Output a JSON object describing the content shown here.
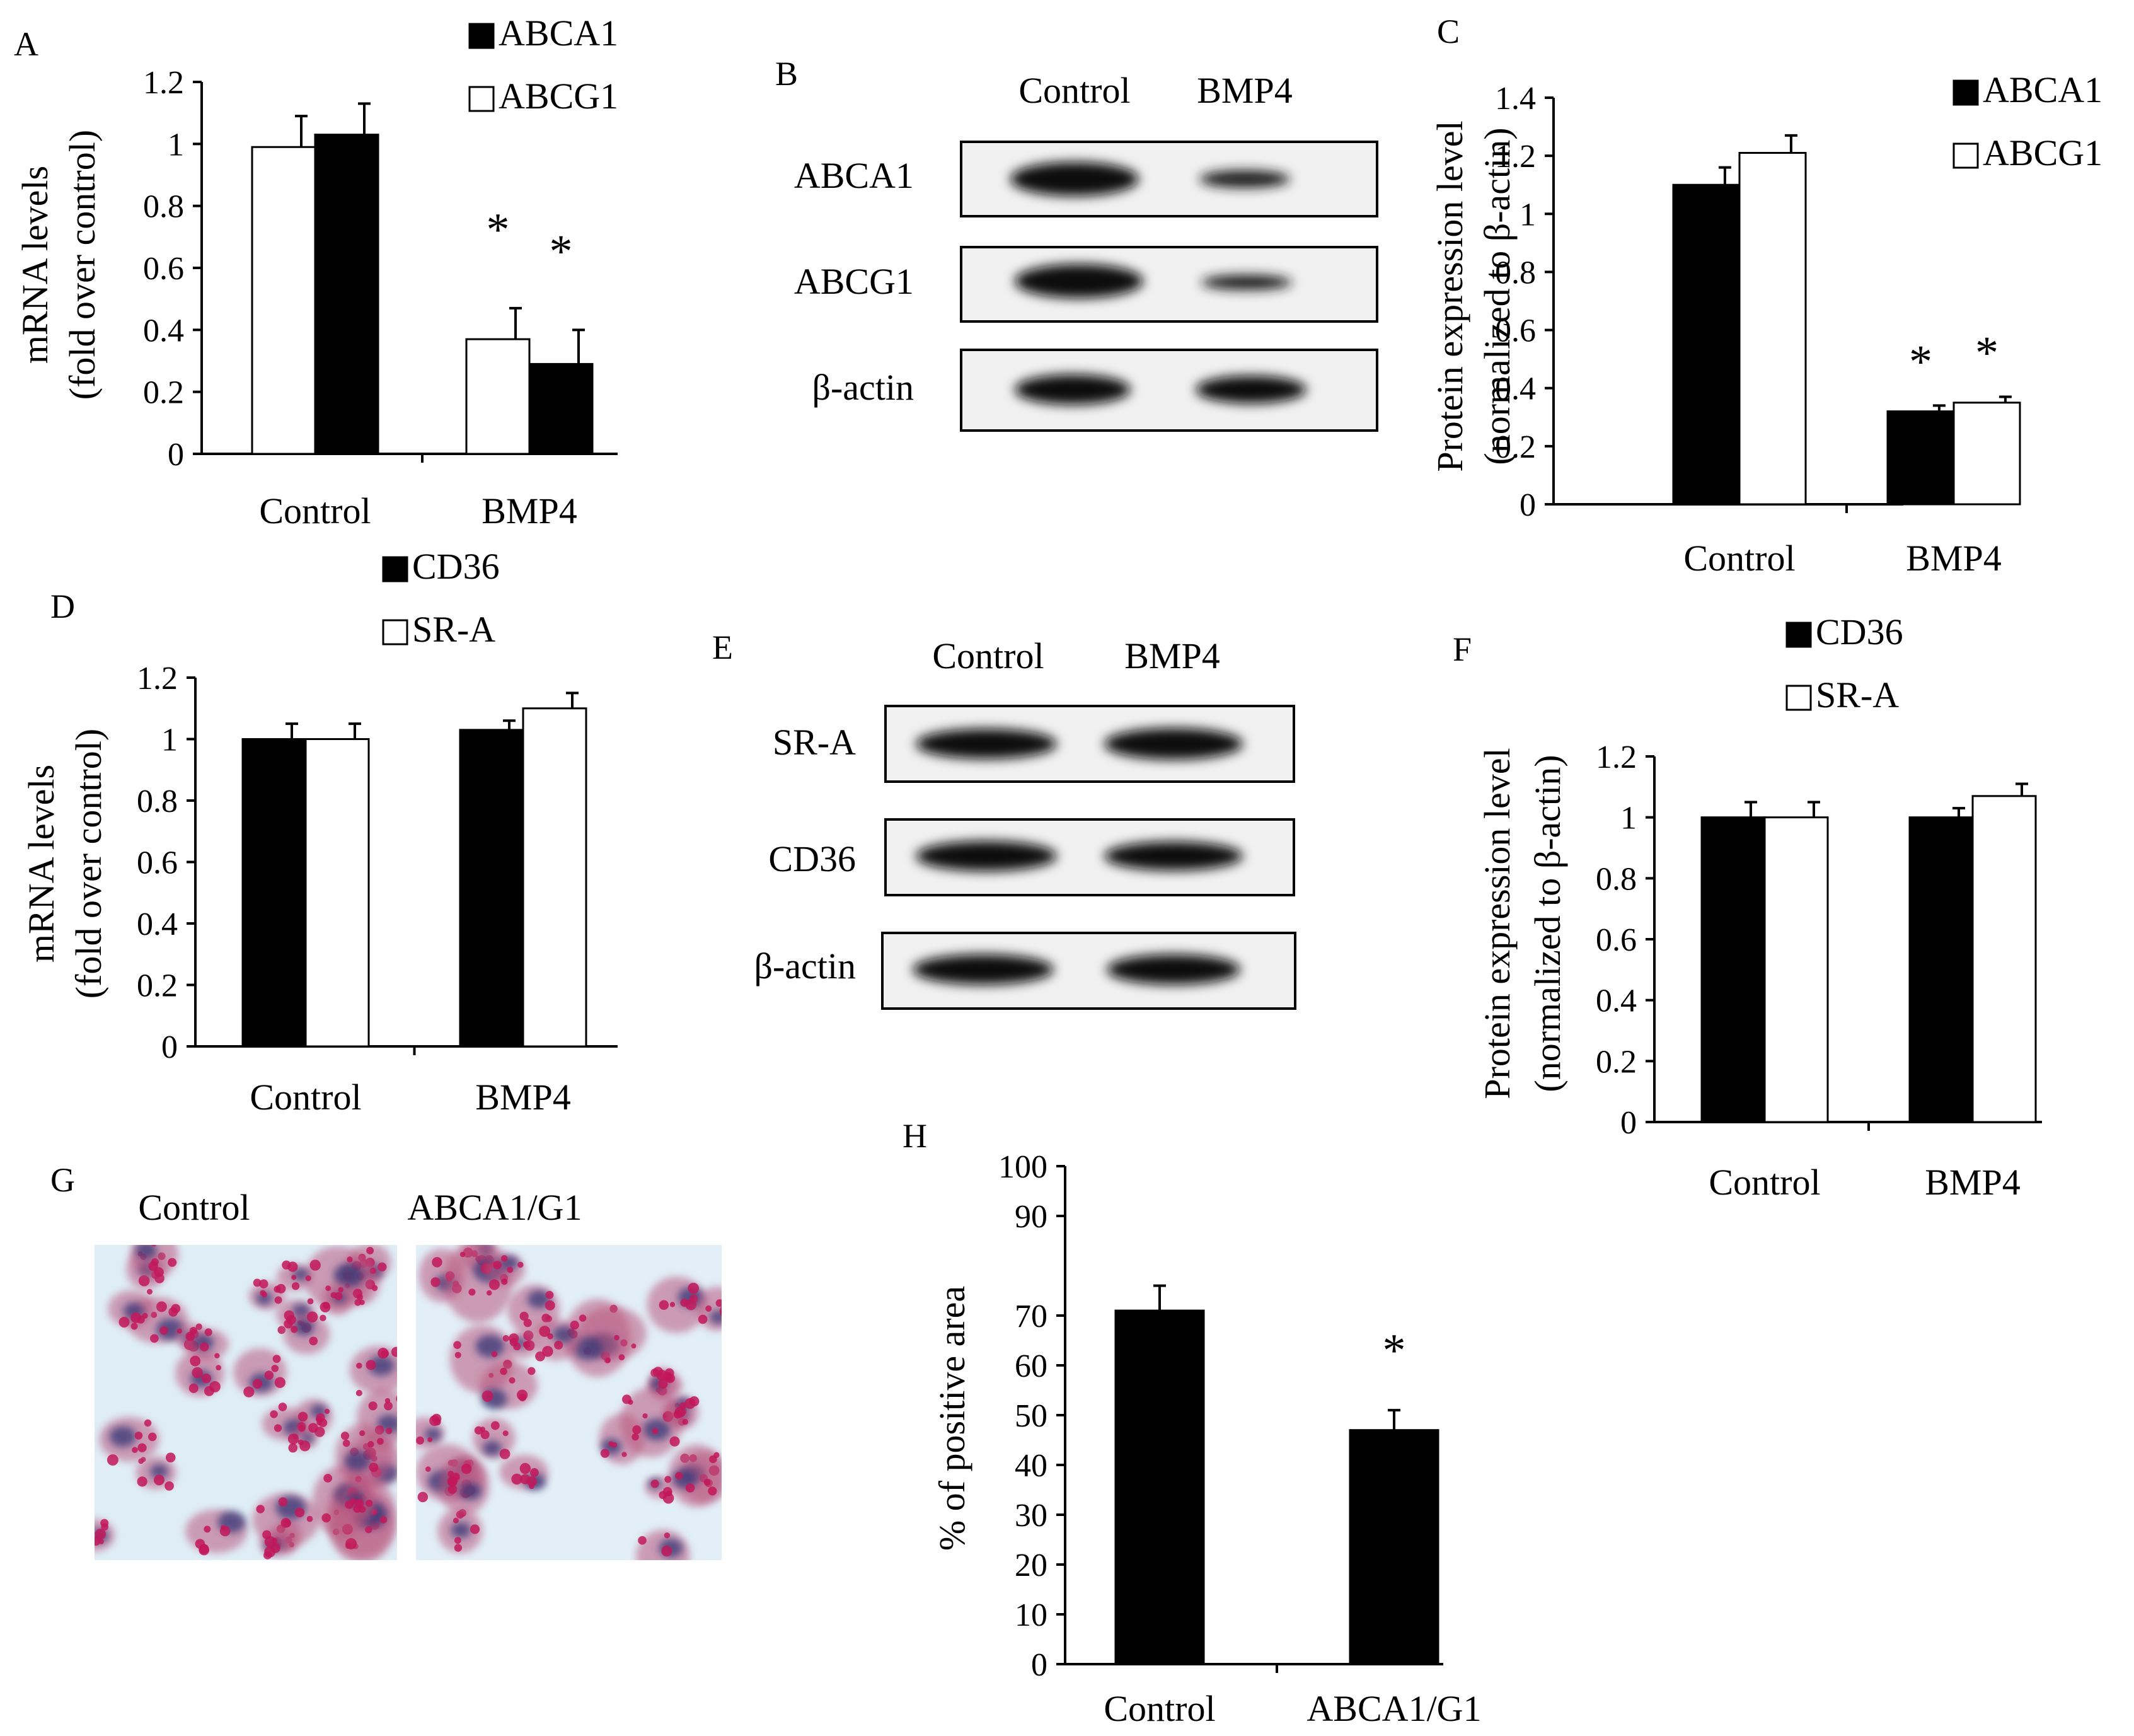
{
  "chart_data": [
    {
      "panel": "A",
      "type": "bar",
      "categories": [
        "Control",
        "BMP4"
      ],
      "ylabel": [
        "mRNA levels",
        "(fold over control)"
      ],
      "ylim": [
        0,
        1.2
      ],
      "yticks": [
        "0",
        "0.2",
        "0.4",
        "0.6",
        "0.8",
        "1",
        "1.2"
      ],
      "legend": [
        "ABCA1",
        "ABCG1"
      ],
      "series": [
        {
          "name": "ABCG1",
          "color": "#ffffff",
          "values": [
            0.99,
            0.37
          ],
          "errors": [
            0.1,
            0.1
          ]
        },
        {
          "name": "ABCA1",
          "color": "#000000",
          "values": [
            1.03,
            0.29
          ],
          "errors": [
            0.1,
            0.11
          ]
        }
      ],
      "annotations": [
        {
          "series": 0,
          "category": 1,
          "text": "*"
        },
        {
          "series": 1,
          "category": 1,
          "text": "*"
        }
      ]
    },
    {
      "panel": "C",
      "type": "bar",
      "categories": [
        "Control",
        "BMP4"
      ],
      "ylabel": [
        "Protein expression level",
        "(normalized to β-actin)"
      ],
      "ylim": [
        0,
        1.4
      ],
      "yticks": [
        "0",
        "0.2",
        "0.4",
        "0.6",
        "0.8",
        "1",
        "1.2",
        "1.4"
      ],
      "legend": [
        "ABCA1",
        "ABCG1"
      ],
      "series": [
        {
          "name": "ABCA1",
          "color": "#000000",
          "values": [
            1.1,
            0.32
          ],
          "errors": [
            0.06,
            0.02
          ]
        },
        {
          "name": "ABCG1",
          "color": "#ffffff",
          "values": [
            1.21,
            0.35
          ],
          "errors": [
            0.06,
            0.02
          ]
        }
      ],
      "annotations": [
        {
          "series": 0,
          "category": 1,
          "text": "*"
        },
        {
          "series": 1,
          "category": 1,
          "text": "*"
        }
      ]
    },
    {
      "panel": "D",
      "type": "bar",
      "categories": [
        "Control",
        "BMP4"
      ],
      "ylabel": [
        "mRNA levels",
        "(fold over control)"
      ],
      "ylim": [
        0,
        1.2
      ],
      "yticks": [
        "0",
        "0.2",
        "0.4",
        "0.6",
        "0.8",
        "1",
        "1.2"
      ],
      "legend": [
        "CD36",
        "SR-A"
      ],
      "series": [
        {
          "name": "CD36",
          "color": "#000000",
          "values": [
            1.0,
            1.03
          ],
          "errors": [
            0.05,
            0.03
          ]
        },
        {
          "name": "SR-A",
          "color": "#ffffff",
          "values": [
            1.0,
            1.1
          ],
          "errors": [
            0.05,
            0.05
          ]
        }
      ],
      "annotations": []
    },
    {
      "panel": "F",
      "type": "bar",
      "categories": [
        "Control",
        "BMP4"
      ],
      "ylabel": [
        "Protein expression level",
        "(normalized to β-actin)"
      ],
      "ylim": [
        0,
        1.2
      ],
      "yticks": [
        "0",
        "0.2",
        "0.4",
        "0.6",
        "0.8",
        "1",
        "1.2"
      ],
      "legend": [
        "CD36",
        "SR-A"
      ],
      "series": [
        {
          "name": "CD36",
          "color": "#000000",
          "values": [
            1.0,
            1.0
          ],
          "errors": [
            0.05,
            0.03
          ]
        },
        {
          "name": "SR-A",
          "color": "#ffffff",
          "values": [
            1.0,
            1.07
          ],
          "errors": [
            0.05,
            0.04
          ]
        }
      ],
      "annotations": []
    },
    {
      "panel": "H",
      "type": "bar",
      "categories": [
        "Control",
        "ABCA1/G1"
      ],
      "ylabel": [
        "% of positive area"
      ],
      "ylim": [
        0,
        100
      ],
      "yticks": [
        "0",
        "10",
        "20",
        "30",
        "40",
        "50",
        "60",
        "70",
        "90",
        "100"
      ],
      "legend": [],
      "series": [
        {
          "name": "",
          "color": "#000000",
          "values": [
            71,
            47
          ],
          "errors": [
            5,
            4
          ]
        }
      ],
      "annotations": [
        {
          "series": 0,
          "category": 1,
          "text": "*"
        }
      ]
    }
  ],
  "blots": {
    "B": {
      "panel": "B",
      "columns": [
        "Control",
        "BMP4"
      ],
      "rows": [
        "ABCA1",
        "ABCG1",
        "β-actin"
      ]
    },
    "E": {
      "panel": "E",
      "columns": [
        "Control",
        "BMP4"
      ],
      "rows": [
        "SR-A",
        "CD36",
        "β-actin"
      ]
    }
  },
  "micrographs": {
    "panel": "G",
    "labels": [
      "Control",
      "ABCA1/G1"
    ]
  }
}
